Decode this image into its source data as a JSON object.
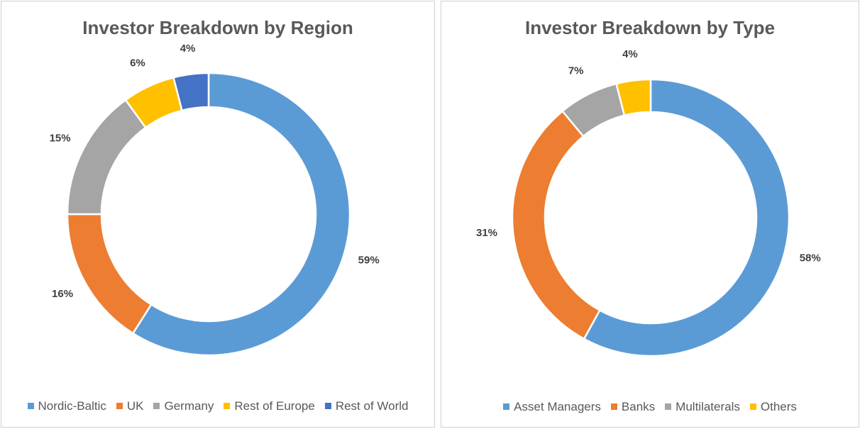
{
  "chart_data": [
    {
      "type": "pie",
      "title": "Investor Breakdown by Region",
      "categories": [
        "Nordic-Baltic",
        "UK",
        "Germany",
        "Rest of Europe",
        "Rest of World"
      ],
      "values": [
        59,
        16,
        15,
        6,
        4
      ],
      "labels": [
        "59%",
        "16%",
        "15%",
        "6%",
        "4%"
      ],
      "colors": [
        "#5B9BD5",
        "#ED7D31",
        "#A5A5A5",
        "#FFC000",
        "#4472C4"
      ],
      "donut": true,
      "legend_position": "bottom"
    },
    {
      "type": "pie",
      "title": "Investor Breakdown by Type",
      "categories": [
        "Asset Managers",
        "Banks",
        "Multilaterals",
        "Others"
      ],
      "values": [
        58,
        31,
        7,
        4
      ],
      "labels": [
        "58%",
        "31%",
        "7%",
        "4%"
      ],
      "colors": [
        "#5B9BD5",
        "#ED7D31",
        "#A5A5A5",
        "#FFC000"
      ],
      "donut": true,
      "legend_position": "bottom"
    }
  ]
}
